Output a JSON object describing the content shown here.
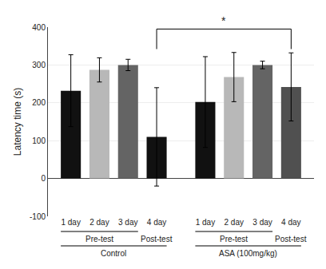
{
  "chart_data": {
    "type": "bar",
    "categories": [
      "1 day",
      "2 day",
      "3 day",
      "4 day",
      "1 day",
      "2 day",
      "3 day",
      "4 day"
    ],
    "values": [
      232,
      287,
      300,
      110,
      202,
      268,
      300,
      242
    ],
    "errors": [
      95,
      32,
      15,
      130,
      120,
      65,
      10,
      90
    ],
    "colors": [
      "#111111",
      "#b8b8b8",
      "#646464",
      "#111111",
      "#111111",
      "#b8b8b8",
      "#646464",
      "#505050"
    ],
    "ylabel": "Latency time (s)",
    "ylim": [
      -100,
      400
    ],
    "yticks": [
      -100,
      0,
      100,
      200,
      300,
      400
    ],
    "groups": [
      {
        "label": "Control",
        "subgroups": [
          {
            "label": "Pre-test",
            "categories": [
              "1 day",
              "2 day",
              "3 day"
            ]
          },
          {
            "label": "Post-test",
            "categories": [
              "4 day"
            ]
          }
        ]
      },
      {
        "label": "ASA (100mg/kg)",
        "subgroups": [
          {
            "label": "Pre-test",
            "categories": [
              "1 day",
              "2 day",
              "3 day"
            ]
          },
          {
            "label": "Post-test",
            "categories": [
              "4 day"
            ]
          }
        ]
      }
    ],
    "annotations": [
      {
        "text": "*",
        "bracket": [
          3,
          7
        ]
      }
    ]
  }
}
